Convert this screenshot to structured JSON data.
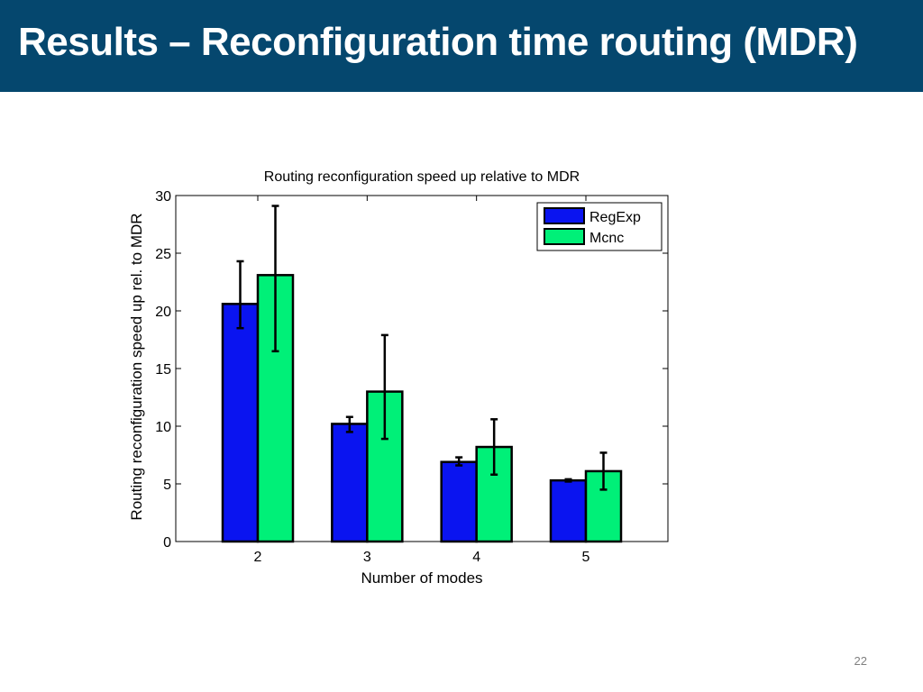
{
  "slide": {
    "title": "Results – Reconfiguration time routing (MDR)",
    "page_number": "22",
    "colors": {
      "title_bar": "#05476e",
      "title_text": "#ffffff"
    }
  },
  "chart_data": {
    "type": "bar",
    "title": "Routing reconfiguration speed up relative to MDR",
    "xlabel": "Number of modes",
    "ylabel": "Routing reconfiguration speed up rel. to MDR",
    "categories": [
      "2",
      "3",
      "4",
      "5"
    ],
    "ylim": [
      0,
      30
    ],
    "yticks": [
      0,
      5,
      10,
      15,
      20,
      25,
      30
    ],
    "grid": false,
    "legend_position": "top-right",
    "series": [
      {
        "name": "RegExp",
        "color": "#0a14f0",
        "values": [
          20.6,
          10.2,
          6.9,
          5.3
        ],
        "err_low": [
          18.5,
          9.5,
          6.6,
          5.2
        ],
        "err_high": [
          24.3,
          10.8,
          7.3,
          5.4
        ]
      },
      {
        "name": "Mcnc",
        "color": "#00f078",
        "values": [
          23.1,
          13.0,
          8.2,
          6.1
        ],
        "err_low": [
          16.5,
          8.9,
          5.8,
          4.5
        ],
        "err_high": [
          29.1,
          17.9,
          10.6,
          7.7
        ]
      }
    ]
  }
}
